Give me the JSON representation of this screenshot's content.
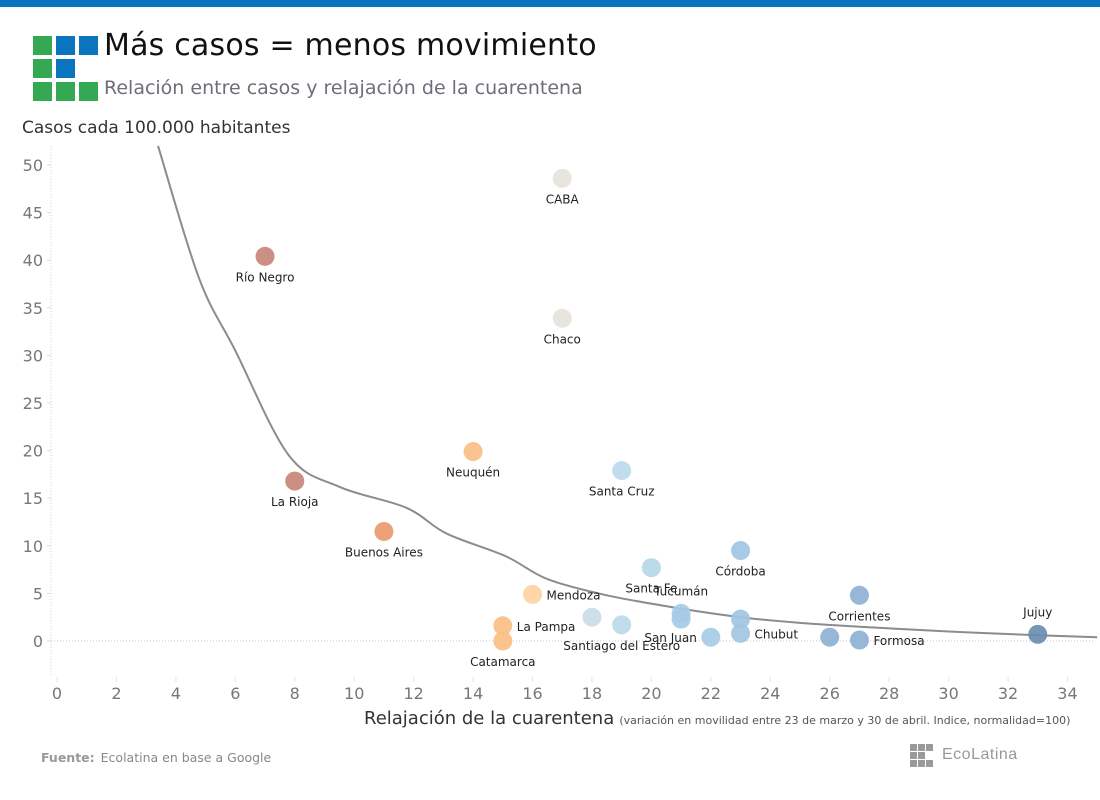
{
  "header": {
    "title": "Más casos = menos movimiento",
    "subtitle": "Relación entre casos y relajación de la cuarentena"
  },
  "logo": {
    "grid": [
      [
        "green",
        "blue",
        "blue"
      ],
      [
        "green",
        "blue",
        ""
      ],
      [
        "green",
        "green",
        "green"
      ]
    ],
    "colors": {
      "green": "#34a853",
      "blue": "#0a74be"
    }
  },
  "footer": {
    "source_label": "Fuente:",
    "source_text": "Ecolatina en base a Google",
    "brand": "EcoLatina"
  },
  "chart_data": {
    "type": "scatter",
    "title": "Más casos = menos movimiento",
    "subtitle": "Relación entre casos y relajación de la cuarentena",
    "xlabel": "Relajación de la cuarentena",
    "xlabel_note": "(variación en movilidad entre 23 de marzo y 30 de abril. Indice, normalidad=100)",
    "ylabel": "Casos cada 100.000 habitantes",
    "xlim": [
      -0.2,
      35
    ],
    "ylim": [
      -3.8,
      52
    ],
    "xticks": [
      0,
      2,
      4,
      6,
      8,
      10,
      12,
      14,
      16,
      18,
      20,
      22,
      24,
      26,
      28,
      30,
      32,
      34
    ],
    "yticks": [
      0,
      5,
      10,
      15,
      20,
      25,
      30,
      35,
      40,
      45,
      50
    ],
    "grid": false,
    "zero_line": true,
    "points": [
      {
        "label": "CABA",
        "x": 17,
        "y": 48.6,
        "color": "#e6e3dc",
        "label_pos": "below"
      },
      {
        "label": "Río Negro",
        "x": 7,
        "y": 40.4,
        "color": "#c9867a",
        "label_pos": "below"
      },
      {
        "label": "Chaco",
        "x": 17,
        "y": 33.9,
        "color": "#e6e3dc",
        "label_pos": "below"
      },
      {
        "label": "Neuquén",
        "x": 14,
        "y": 19.9,
        "color": "#fbbf84",
        "label_pos": "below"
      },
      {
        "label": "Santa Cruz",
        "x": 19,
        "y": 17.9,
        "color": "#bcdaec",
        "label_pos": "below"
      },
      {
        "label": "La Rioja",
        "x": 8,
        "y": 16.8,
        "color": "#c9867a",
        "label_pos": "below"
      },
      {
        "label": "Buenos Aires",
        "x": 11,
        "y": 11.5,
        "color": "#e99a6f",
        "label_pos": "below"
      },
      {
        "label": "Córdoba",
        "x": 23,
        "y": 9.5,
        "color": "#a1c5e2",
        "label_pos": "below"
      },
      {
        "label": "Santa Fe",
        "x": 20,
        "y": 7.7,
        "color": "#b7d6ea",
        "label_pos": "below"
      },
      {
        "label": "Mendoza",
        "x": 16,
        "y": 4.9,
        "color": "#fdd3a2",
        "label_pos": "right"
      },
      {
        "label": "Corrientes",
        "x": 27,
        "y": 4.8,
        "color": "#8eb1d2",
        "label_pos": "below"
      },
      {
        "label": "",
        "x": 18,
        "y": 2.5,
        "color": "#c9dde8",
        "label_pos": "none"
      },
      {
        "label": "Tucumán",
        "x": 21,
        "y": 2.9,
        "color": "#a6cbe6",
        "label_pos": "above"
      },
      {
        "label": "",
        "x": 21,
        "y": 2.3,
        "color": "#a6cbe6",
        "label_pos": "none"
      },
      {
        "label": "",
        "x": 23,
        "y": 2.3,
        "color": "#a1c5e2",
        "label_pos": "none"
      },
      {
        "label": "Santiago del Estero",
        "x": 19,
        "y": 1.7,
        "color": "#bcdaec",
        "label_pos": "below"
      },
      {
        "label": "La Pampa",
        "x": 15,
        "y": 1.6,
        "color": "#fbbf84",
        "label_pos": "right"
      },
      {
        "label": "Chubut",
        "x": 23,
        "y": 0.8,
        "color": "#a1c5e2",
        "label_pos": "right"
      },
      {
        "label": "Jujuy",
        "x": 33,
        "y": 0.7,
        "color": "#6a8db0",
        "label_pos": "above"
      },
      {
        "label": "San Juan",
        "x": 22,
        "y": 0.4,
        "color": "#a6cbe6",
        "label_pos": "left"
      },
      {
        "label": "",
        "x": 26,
        "y": 0.4,
        "color": "#8eb1d2",
        "label_pos": "none"
      },
      {
        "label": "Formosa",
        "x": 27,
        "y": 0.1,
        "color": "#8eb1d2",
        "label_pos": "right"
      },
      {
        "label": "Catamarca",
        "x": 15,
        "y": 0.0,
        "color": "#fbbf84",
        "label_pos": "below"
      }
    ],
    "trend": {
      "type": "fitted-curve",
      "color": "#8c8c8c",
      "points": [
        [
          3.4,
          52
        ],
        [
          4.78,
          38.1
        ],
        [
          6,
          30.5
        ],
        [
          7.8,
          19.5
        ],
        [
          9.5,
          16.2
        ],
        [
          11.75,
          14.0
        ],
        [
          13.1,
          11.3
        ],
        [
          15.1,
          8.9
        ],
        [
          16.5,
          6.5
        ],
        [
          18.5,
          4.8
        ],
        [
          21,
          3.4
        ],
        [
          23,
          2.5
        ],
        [
          25,
          1.9
        ],
        [
          27,
          1.5
        ],
        [
          30,
          1.0
        ],
        [
          33,
          0.6
        ],
        [
          35,
          0.4
        ]
      ]
    }
  }
}
